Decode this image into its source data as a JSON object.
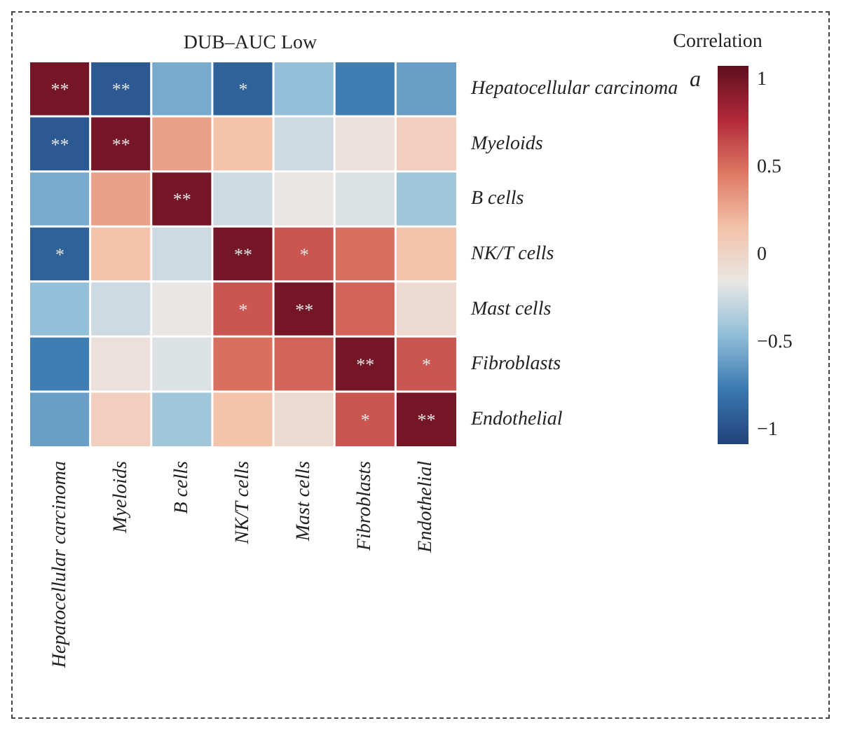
{
  "chart_data": {
    "type": "heatmap",
    "title": "DUB–AUC Low",
    "clabel": "Correlation",
    "annotations": [
      "a"
    ],
    "categories": [
      "Hepatocellular carcinoma",
      "Myeloids",
      "B cells",
      "NK/T cells",
      "Mast cells",
      "Fibroblasts",
      "Endothelial"
    ],
    "y_categories": [
      "Hepatocellular carcinoma",
      "Myeloids",
      "B cells",
      "NK/T cells",
      "Mast cells",
      "Fibroblasts",
      "Endothelial"
    ],
    "cells": [
      [
        1,
        -0.95,
        -0.55,
        -0.9,
        -0.45,
        -0.75,
        -0.6
      ],
      [
        -0.95,
        1,
        0.3,
        0.15,
        -0.25,
        -0.1,
        0.05
      ],
      [
        -0.55,
        0.3,
        1,
        -0.25,
        -0.15,
        -0.2,
        -0.4
      ],
      [
        -0.9,
        0.15,
        -0.25,
        1,
        0.6,
        0.5,
        0.15
      ],
      [
        -0.45,
        -0.25,
        -0.15,
        0.6,
        1,
        0.55,
        -0.05
      ],
      [
        -0.75,
        -0.1,
        -0.2,
        0.5,
        0.55,
        1,
        0.6
      ],
      [
        -0.6,
        0.05,
        -0.4,
        0.15,
        -0.05,
        0.6,
        1
      ]
    ],
    "cell_labels": [
      [
        "**",
        "**",
        null,
        "*",
        null,
        null,
        null
      ],
      [
        "**",
        "**",
        null,
        null,
        null,
        null,
        null
      ],
      [
        null,
        null,
        "**",
        null,
        null,
        null,
        null
      ],
      [
        "*",
        null,
        null,
        "**",
        "*",
        null,
        null
      ],
      [
        null,
        null,
        null,
        "*",
        "**",
        null,
        null
      ],
      [
        null,
        null,
        null,
        null,
        null,
        "**",
        "*"
      ],
      [
        null,
        null,
        null,
        null,
        null,
        "*",
        "**"
      ]
    ],
    "clim": [
      -1.08,
      1.08
    ],
    "cticks": [
      {
        "value": -1,
        "label": "−1"
      },
      {
        "value": -0.5,
        "label": "−0.5"
      },
      0,
      0.5,
      1
    ]
  }
}
